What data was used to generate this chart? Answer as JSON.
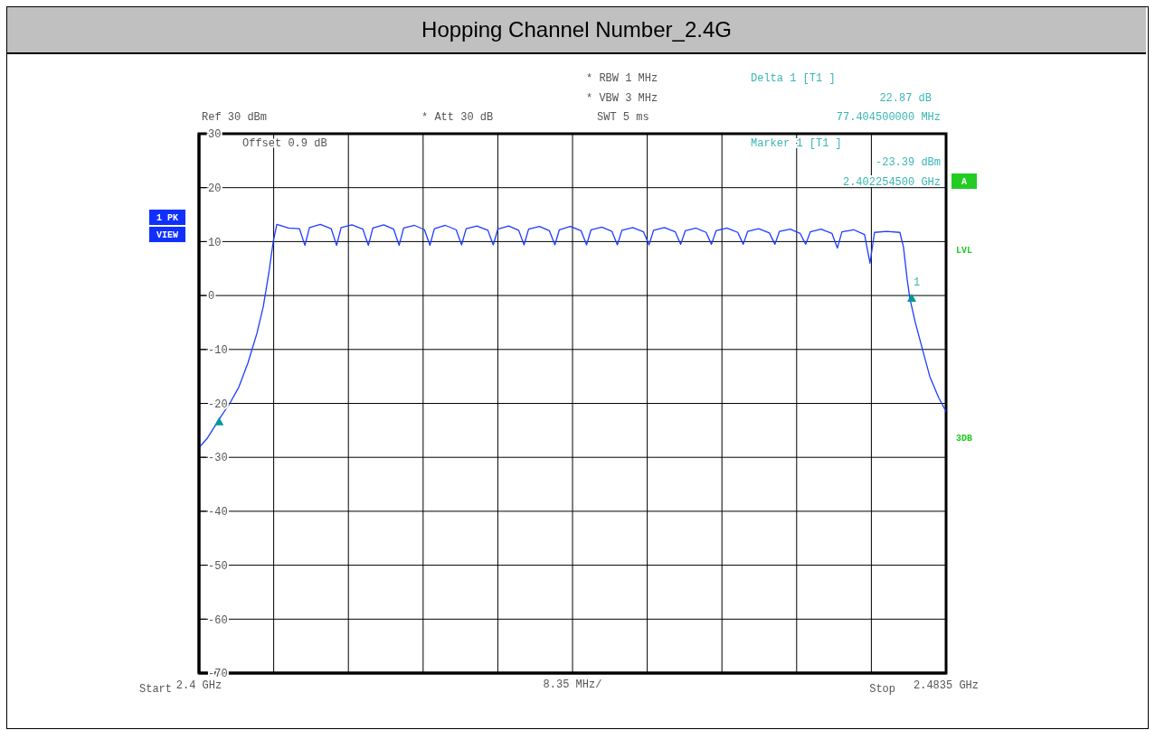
{
  "chart_data": {
    "type": "line",
    "title": "Hopping Channel Number_2.4G",
    "xlabel": "8.35 MHz/",
    "xlim": [
      2.4,
      2.4835
    ],
    "xticks": [
      {
        "value": 2.4,
        "label": "2.4 GHz"
      },
      {
        "value": 2.40835,
        "label": null
      },
      {
        "value": 2.4167,
        "label": null
      },
      {
        "value": 2.42505,
        "label": null
      },
      {
        "value": 2.4334,
        "label": null
      },
      {
        "value": 2.44175,
        "label": null
      },
      {
        "value": 2.4501,
        "label": null
      },
      {
        "value": 2.45845,
        "label": null
      },
      {
        "value": 2.4668,
        "label": null
      },
      {
        "value": 2.47515,
        "label": null
      },
      {
        "value": 2.4835,
        "label": "2.4835 GHz"
      }
    ],
    "ylim": [
      -70,
      30
    ],
    "yticks": [
      -70,
      -60,
      -50,
      -40,
      -30,
      -20,
      -10,
      0,
      10,
      20,
      30
    ],
    "grid": true,
    "legend": false,
    "series": [
      {
        "color": "#1f3cff",
        "marker": "none",
        "x": [
          2.4,
          2.40091,
          2.40243,
          2.40344,
          2.40445,
          2.40547,
          2.40648,
          2.40719,
          2.40779,
          2.4083,
          2.4087,
          2.41002,
          2.41123,
          2.41184,
          2.41235,
          2.41356,
          2.41478,
          2.41538,
          2.41589,
          2.4171,
          2.41832,
          2.41893,
          2.41943,
          2.42065,
          2.42176,
          2.42237,
          2.42287,
          2.42409,
          2.4252,
          2.42581,
          2.42631,
          2.42753,
          2.42874,
          2.42935,
          2.42986,
          2.43107,
          2.43229,
          2.43289,
          2.4334,
          2.43461,
          2.43573,
          2.43633,
          2.43684,
          2.43805,
          2.43917,
          2.43978,
          2.44028,
          2.4415,
          2.44271,
          2.44332,
          2.44382,
          2.44504,
          2.44615,
          2.44676,
          2.44727,
          2.44848,
          2.44969,
          2.4503,
          2.45081,
          2.45202,
          2.45324,
          2.45384,
          2.45435,
          2.45556,
          2.45668,
          2.45728,
          2.45779,
          2.45901,
          2.46022,
          2.46083,
          2.46133,
          2.46255,
          2.46376,
          2.46437,
          2.46488,
          2.46609,
          2.4672,
          2.46781,
          2.46832,
          2.46953,
          2.47075,
          2.47135,
          2.47186,
          2.47317,
          2.47439,
          2.475,
          2.4755,
          2.47682,
          2.47834,
          2.47874,
          2.47915,
          2.47945,
          2.48006,
          2.48087,
          2.48168,
          2.48269,
          2.4835
        ],
        "values": [
          -28.2,
          -26.5,
          -22.5,
          -20,
          -17,
          -12.5,
          -7,
          -2,
          4,
          10,
          13.2,
          12.5,
          12.4,
          9.3,
          12.6,
          13.2,
          12.4,
          9.3,
          12.6,
          13.1,
          12.3,
          9.3,
          12.5,
          13.1,
          12.3,
          9.3,
          12.5,
          13,
          12.2,
          9.3,
          12.4,
          13,
          12.2,
          9.4,
          12.4,
          12.9,
          12.1,
          9.4,
          12.3,
          12.9,
          12.1,
          9.4,
          12.3,
          12.8,
          12,
          9.4,
          12.2,
          12.8,
          12,
          9.4,
          12.2,
          12.7,
          11.9,
          9.4,
          12.1,
          12.6,
          11.8,
          9.4,
          12.1,
          12.6,
          11.8,
          9.5,
          12,
          12.5,
          11.7,
          9.5,
          12,
          12.5,
          11.7,
          9.5,
          11.9,
          12.4,
          11.6,
          9.5,
          11.9,
          12.3,
          11.5,
          9.5,
          11.8,
          12.3,
          11.5,
          8.8,
          11.8,
          12.2,
          11.3,
          6,
          11.7,
          11.9,
          11.7,
          9,
          3,
          -0.5,
          -5,
          -10,
          -15,
          -19,
          -21.5
        ]
      },
      {
        "type": "scatter",
        "color": "#009999",
        "marker": "triangle",
        "x": [
          2.40225,
          2.47966
        ],
        "values": [
          -23.4,
          -0.5
        ]
      }
    ],
    "annotations": [
      "* RBW 1 MHz",
      "* VBW 3 MHz",
      "SWT 5 ms",
      "Ref 30 dBm",
      "* Att 30 dB",
      "Delta 1 [T1 ]",
      "22.87 dB",
      "77.404500000 MHz",
      "Marker 1 [T1 ]",
      "-23.39 dBm",
      "2.402254500 GHz",
      "Offset 0.9 dB",
      "1 PK",
      "VIEW",
      "A",
      "LVL",
      "3DB",
      "Start",
      "Stop",
      {
        "text": "1",
        "x": 2.47966,
        "y": -0.5
      }
    ]
  }
}
